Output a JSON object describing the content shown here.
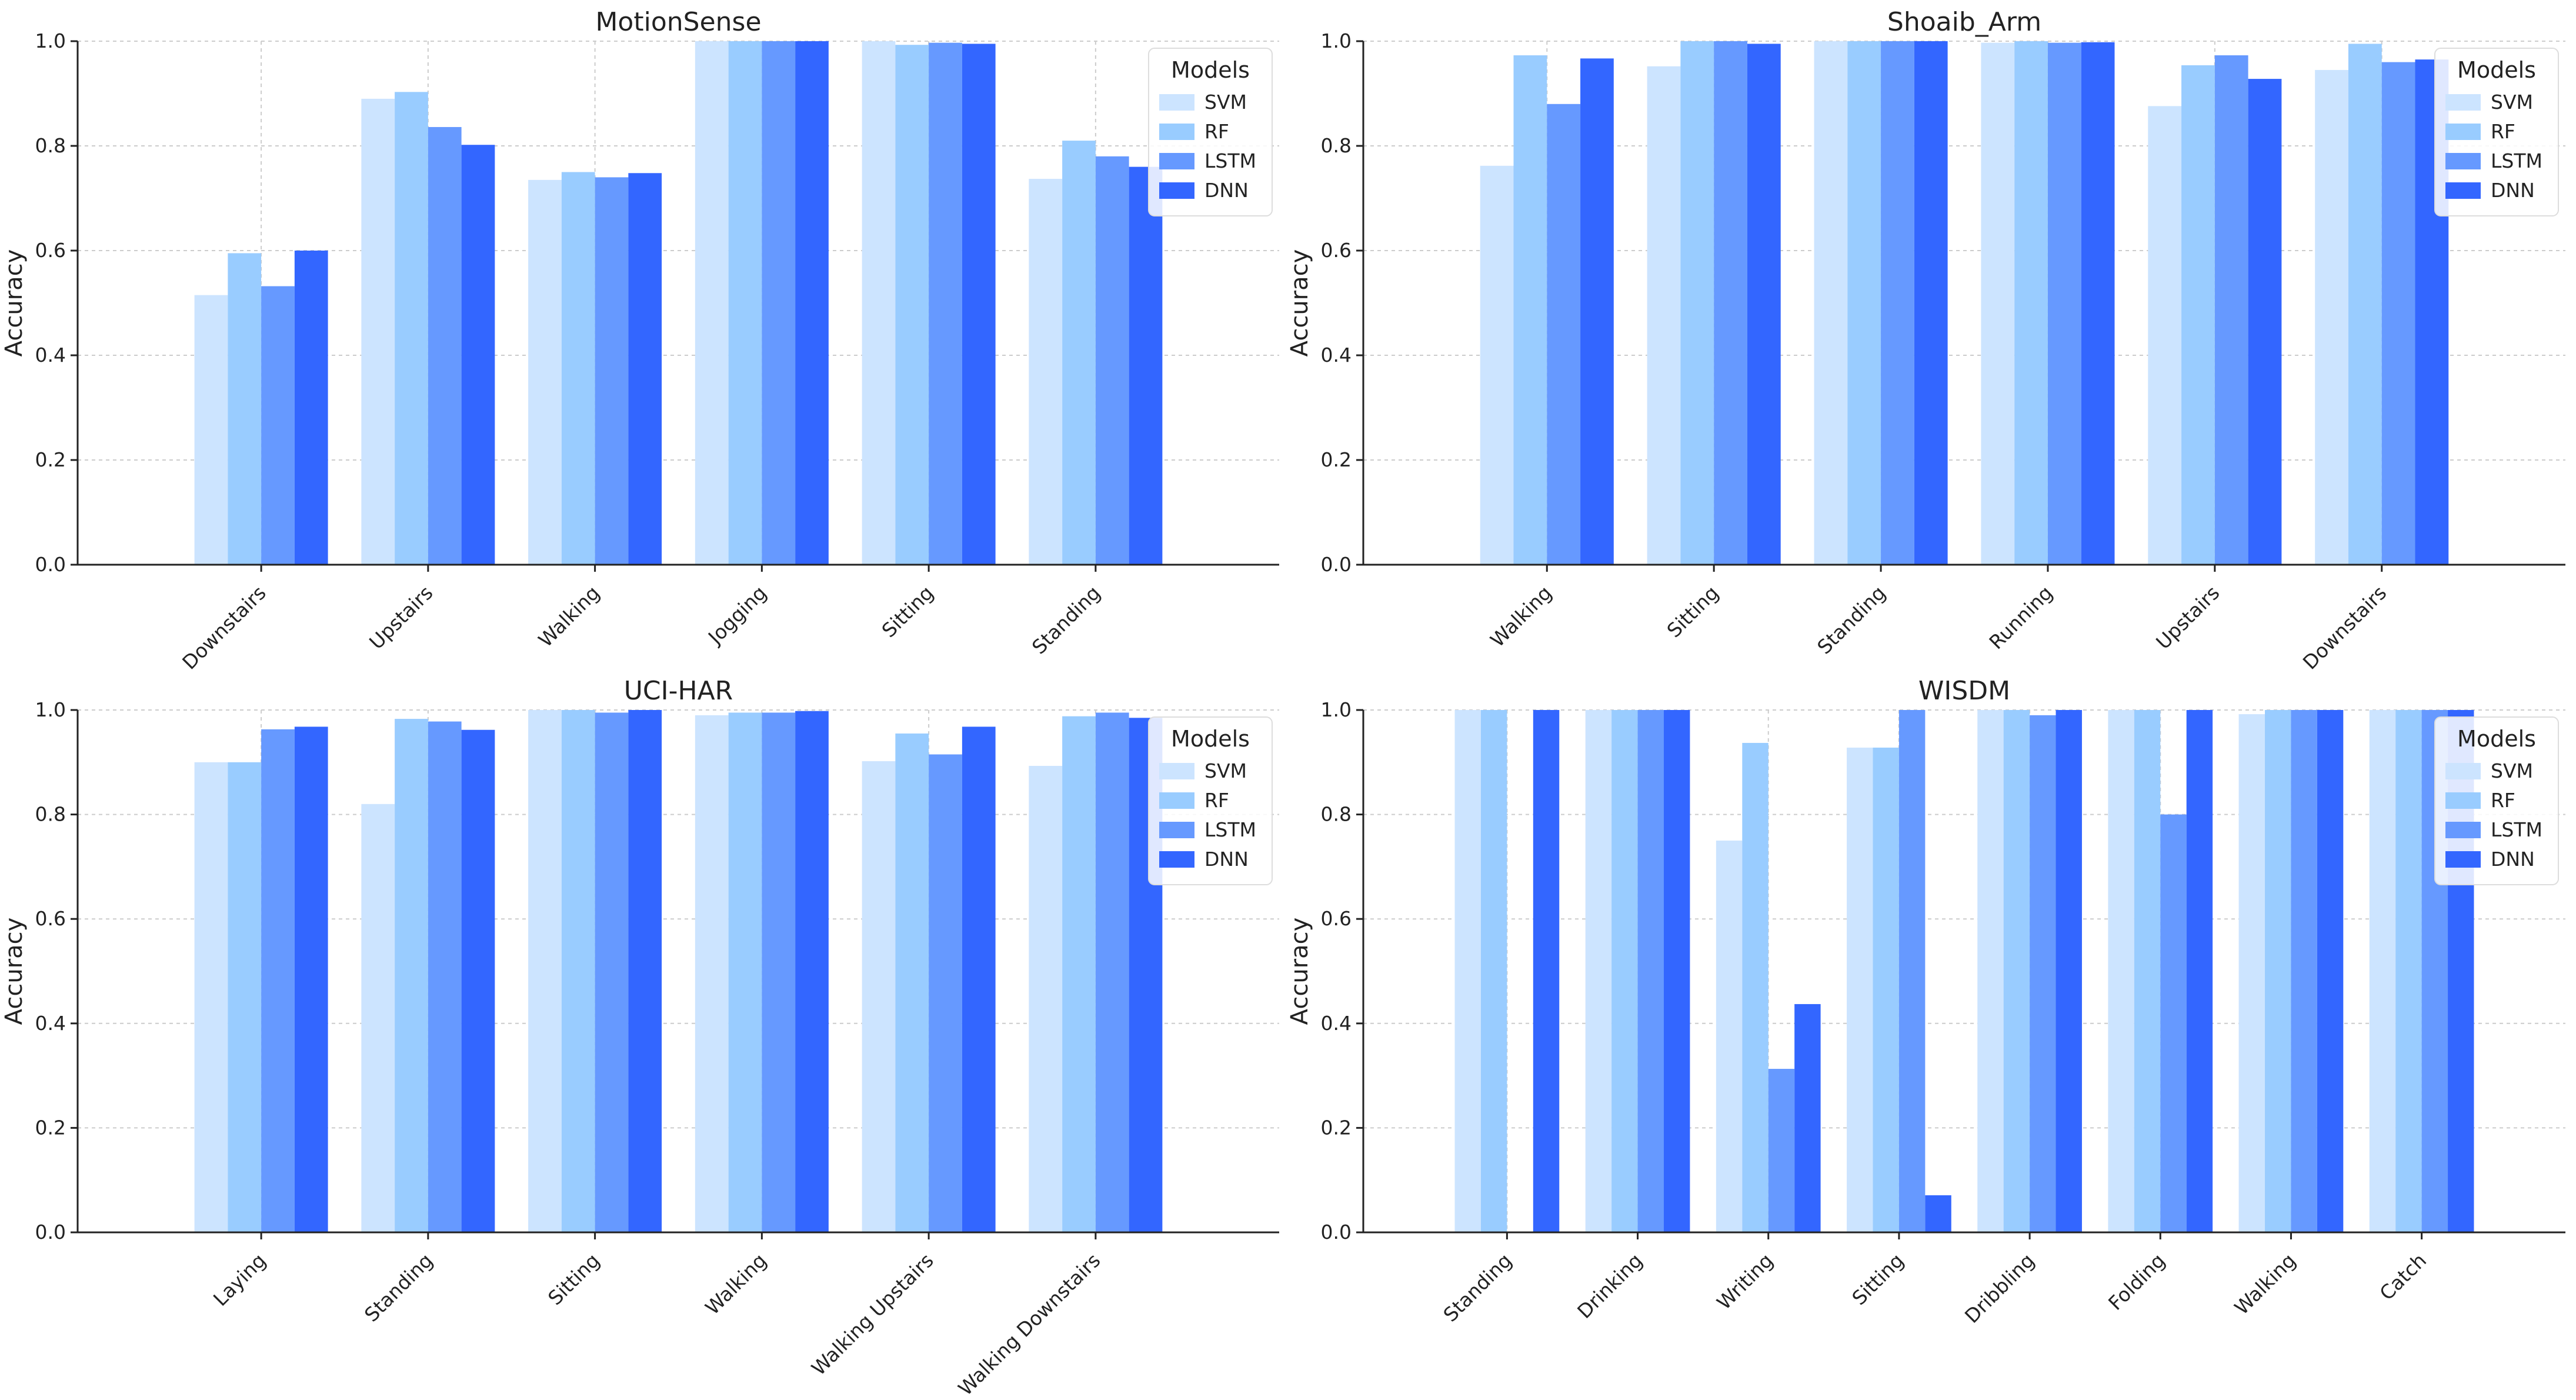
{
  "chart_data": [
    {
      "type": "bar",
      "title": "MotionSense",
      "xlabel": "",
      "ylabel": "Accuracy",
      "ylim": [
        0,
        1.0
      ],
      "yticks": [
        "0.0",
        "0.2",
        "0.4",
        "0.6",
        "0.8",
        "1.0"
      ],
      "categories": [
        "Downstairs",
        "Upstairs",
        "Walking",
        "Jogging",
        "Sitting",
        "Standing"
      ],
      "series": [
        {
          "name": "SVM",
          "values": [
            0.515,
            0.89,
            0.735,
            1.0,
            1.0,
            0.737
          ]
        },
        {
          "name": "RF",
          "values": [
            0.595,
            0.903,
            0.75,
            1.0,
            0.993,
            0.81
          ]
        },
        {
          "name": "LSTM",
          "values": [
            0.532,
            0.836,
            0.74,
            1.0,
            0.997,
            0.78
          ]
        },
        {
          "name": "DNN",
          "values": [
            0.6,
            0.802,
            0.748,
            1.0,
            0.995,
            0.76
          ]
        }
      ],
      "legend": {
        "title": "Models",
        "position": "top-right"
      },
      "grid": true
    },
    {
      "type": "bar",
      "title": "Shoaib_Arm",
      "xlabel": "",
      "ylabel": "Accuracy",
      "ylim": [
        0,
        1.0
      ],
      "yticks": [
        "0.0",
        "0.2",
        "0.4",
        "0.6",
        "0.8",
        "1.0"
      ],
      "categories": [
        "Walking",
        "Sitting",
        "Standing",
        "Running",
        "Upstairs",
        "Downstairs"
      ],
      "series": [
        {
          "name": "SVM",
          "values": [
            0.762,
            0.952,
            1.0,
            0.997,
            0.876,
            0.945
          ]
        },
        {
          "name": "RF",
          "values": [
            0.973,
            1.0,
            1.0,
            1.0,
            0.954,
            0.995
          ]
        },
        {
          "name": "LSTM",
          "values": [
            0.88,
            1.0,
            1.0,
            0.997,
            0.973,
            0.96
          ]
        },
        {
          "name": "DNN",
          "values": [
            0.967,
            0.995,
            1.0,
            0.998,
            0.928,
            0.965
          ]
        }
      ],
      "legend": {
        "title": "Models",
        "position": "top-right"
      },
      "grid": true
    },
    {
      "type": "bar",
      "title": "UCI-HAR",
      "xlabel": "",
      "ylabel": "Accuracy",
      "ylim": [
        0,
        1.0
      ],
      "yticks": [
        "0.0",
        "0.2",
        "0.4",
        "0.6",
        "0.8",
        "1.0"
      ],
      "categories": [
        "Laying",
        "Standing",
        "Sitting",
        "Walking",
        "Walking Upstairs",
        "Walking Downstairs"
      ],
      "series": [
        {
          "name": "SVM",
          "values": [
            0.9,
            0.82,
            1.0,
            0.99,
            0.902,
            0.893
          ]
        },
        {
          "name": "RF",
          "values": [
            0.9,
            0.983,
            1.0,
            0.995,
            0.955,
            0.988
          ]
        },
        {
          "name": "LSTM",
          "values": [
            0.963,
            0.978,
            0.995,
            0.995,
            0.915,
            0.995
          ]
        },
        {
          "name": "DNN",
          "values": [
            0.968,
            0.962,
            1.0,
            0.998,
            0.968,
            0.985
          ]
        }
      ],
      "legend": {
        "title": "Models",
        "position": "top-right"
      },
      "grid": true
    },
    {
      "type": "bar",
      "title": "WISDM",
      "xlabel": "",
      "ylabel": "Accuracy",
      "ylim": [
        0,
        1.0
      ],
      "yticks": [
        "0.0",
        "0.2",
        "0.4",
        "0.6",
        "0.8",
        "1.0"
      ],
      "categories": [
        "Standing",
        "Drinking",
        "Writing",
        "Sitting",
        "Dribbling",
        "Folding",
        "Walking",
        "Catch"
      ],
      "series": [
        {
          "name": "SVM",
          "values": [
            1.0,
            1.0,
            0.75,
            0.928,
            1.0,
            1.0,
            0.992,
            1.0
          ]
        },
        {
          "name": "RF",
          "values": [
            1.0,
            1.0,
            0.937,
            0.928,
            1.0,
            1.0,
            1.0,
            1.0
          ]
        },
        {
          "name": "LSTM",
          "values": [
            0.0,
            1.0,
            0.313,
            1.0,
            0.99,
            0.8,
            1.0,
            1.0
          ]
        },
        {
          "name": "DNN",
          "values": [
            1.0,
            1.0,
            0.437,
            0.071,
            1.0,
            1.0,
            1.0,
            1.0
          ]
        }
      ],
      "legend": {
        "title": "Models",
        "position": "top-right"
      },
      "grid": true
    }
  ],
  "colors": {
    "SVM": "#cce4ff",
    "RF": "#99ccff",
    "LSTM": "#6699ff",
    "DNN": "#3366ff",
    "grid": "#cccccc",
    "axis": "#222222",
    "text": "#222222"
  }
}
